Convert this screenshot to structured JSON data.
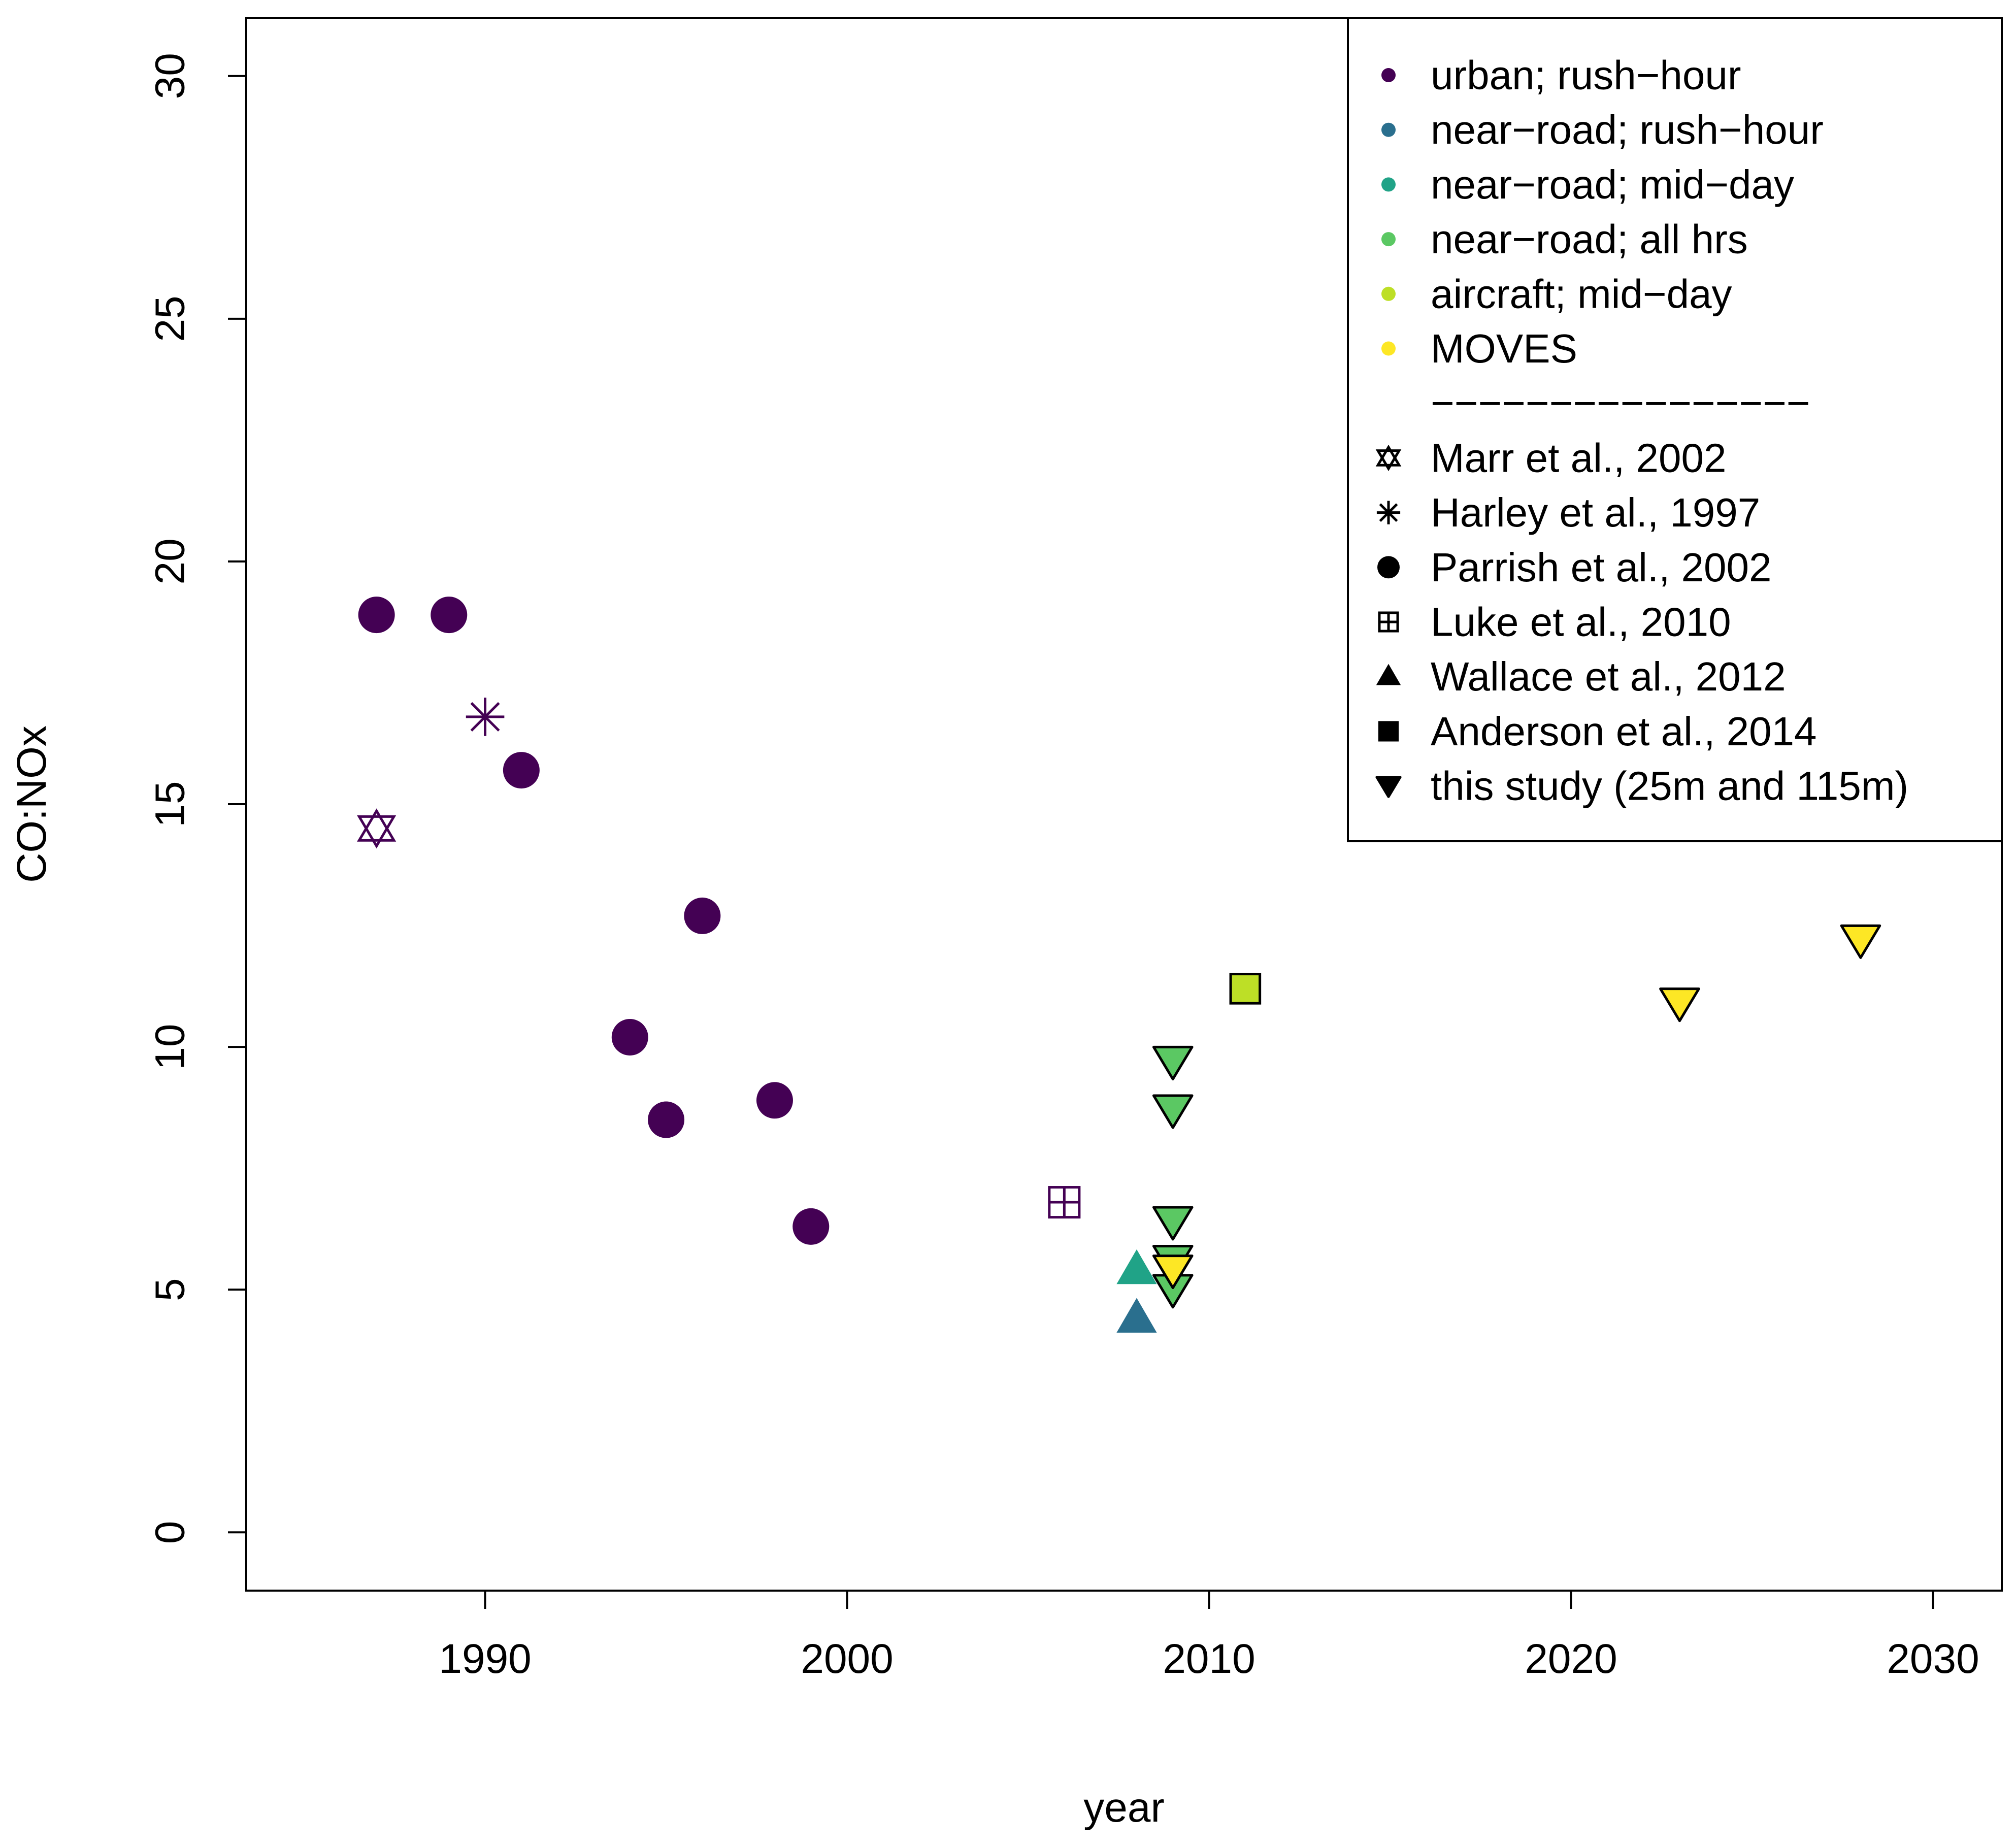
{
  "chart_data": {
    "type": "scatter",
    "title": "",
    "xlabel": "year",
    "ylabel": "CO:NOx",
    "xlim": [
      1983.4,
      2031.9
    ],
    "ylim": [
      -1.2,
      31.2
    ],
    "xticks": [
      "1990",
      "2000",
      "2010",
      "2020",
      "2030"
    ],
    "xtick_values": [
      1990,
      2000,
      2010,
      2020,
      2030
    ],
    "yticks": [
      "0",
      "5",
      "10",
      "15",
      "20",
      "25",
      "30"
    ],
    "ytick_values": [
      0,
      5,
      10,
      15,
      20,
      25,
      30
    ],
    "grid": false,
    "legend_position": "top-right",
    "colors": {
      "urban_rush_hour": "#440154",
      "near_road_rush_hour": "#2A6F8E",
      "near_road_mid_day": "#20A387",
      "near_road_all_hrs": "#5BC863",
      "aircraft_mid_day": "#BDDF26",
      "moves": "#FDE725"
    },
    "legend_colors": [
      {
        "label": "urban; rush−hour",
        "color": "#440154"
      },
      {
        "label": "near−road; rush−hour",
        "color": "#2A6F8E"
      },
      {
        "label": "near−road; mid−day",
        "color": "#20A387"
      },
      {
        "label": "near−road; all hrs",
        "color": "#5BC863"
      },
      {
        "label": "aircraft; mid−day",
        "color": "#BDDF26"
      },
      {
        "label": "MOVES",
        "color": "#FDE725"
      }
    ],
    "legend_separator": "−−−−−−−−−−−−−−−−",
    "legend_shapes": [
      {
        "label": "Marr et al., 2002",
        "shape": "star6"
      },
      {
        "label": "Harley et al., 1997",
        "shape": "asterisk"
      },
      {
        "label": "Parrish et al., 2002",
        "shape": "circle"
      },
      {
        "label": "Luke et al., 2010",
        "shape": "boxplus"
      },
      {
        "label": "Wallace et al., 2012",
        "shape": "triangle-up"
      },
      {
        "label": "Anderson et al., 2014",
        "shape": "square"
      },
      {
        "label": "this study (25m and 115m)",
        "shape": "triangle-down"
      }
    ],
    "series": [
      {
        "name": "Marr et al., 2002",
        "category": "urban; rush−hour",
        "shape": "star6",
        "color": "#440154",
        "points": [
          {
            "x": 1987,
            "y": 14.5
          }
        ]
      },
      {
        "name": "Harley et al., 1997",
        "category": "urban; rush−hour",
        "shape": "asterisk",
        "color": "#440154",
        "points": [
          {
            "x": 1990,
            "y": 16.8
          }
        ]
      },
      {
        "name": "Parrish et al., 2002",
        "category": "urban; rush−hour",
        "shape": "circle",
        "color": "#440154",
        "points": [
          {
            "x": 1987,
            "y": 18.9
          },
          {
            "x": 1989,
            "y": 18.9
          },
          {
            "x": 1991,
            "y": 15.7
          },
          {
            "x": 1994,
            "y": 10.2
          },
          {
            "x": 1995,
            "y": 8.5
          },
          {
            "x": 1996,
            "y": 12.7
          },
          {
            "x": 1998,
            "y": 8.9
          },
          {
            "x": 1999,
            "y": 6.3
          }
        ]
      },
      {
        "name": "Luke et al., 2010",
        "category": "urban; rush−hour",
        "shape": "boxplus",
        "color": "#440154",
        "points": [
          {
            "x": 2006,
            "y": 6.8
          }
        ]
      },
      {
        "name": "Wallace et al., 2012",
        "category": "near−road; rush−hour",
        "shape": "triangle-up",
        "color": "#2A6F8E",
        "points": [
          {
            "x": 2008,
            "y": 4.4
          }
        ]
      },
      {
        "name": "Wallace et al., 2012",
        "category": "near−road; mid−day",
        "shape": "triangle-up",
        "color": "#20A387",
        "points": [
          {
            "x": 2008,
            "y": 5.4
          }
        ]
      },
      {
        "name": "Anderson et al., 2014",
        "category": "aircraft; mid−day",
        "shape": "square",
        "color": "#BDDF26",
        "points": [
          {
            "x": 2011,
            "y": 11.2
          }
        ]
      },
      {
        "name": "this study (25m and 115m)",
        "category": "near−road; all hrs",
        "shape": "triangle-down",
        "color": "#5BC863",
        "points": [
          {
            "x": 2009,
            "y": 9.7
          },
          {
            "x": 2009,
            "y": 8.7
          },
          {
            "x": 2009,
            "y": 6.4
          },
          {
            "x": 2009,
            "y": 5.6
          },
          {
            "x": 2009,
            "y": 5.0
          }
        ]
      },
      {
        "name": "this study (25m and 115m)",
        "category": "MOVES",
        "shape": "triangle-down",
        "color": "#FDE725",
        "points": [
          {
            "x": 2009,
            "y": 5.4
          },
          {
            "x": 2023,
            "y": 10.9
          },
          {
            "x": 2028,
            "y": 12.2
          }
        ]
      }
    ]
  }
}
